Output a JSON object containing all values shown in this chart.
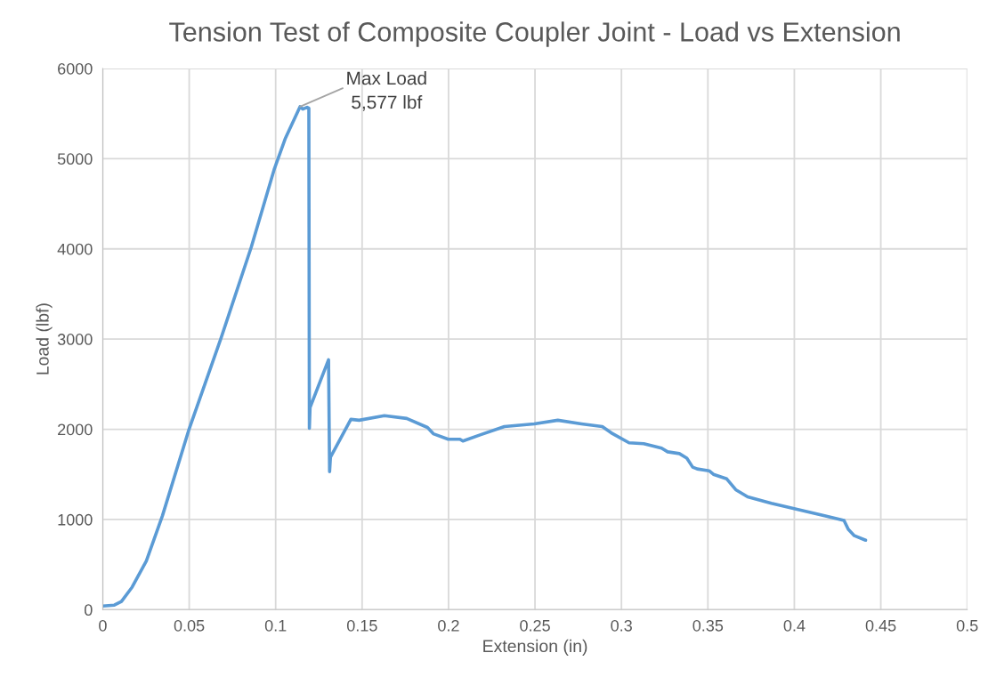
{
  "chart_data": {
    "type": "line",
    "title": "Tension Test of Composite Coupler Joint - Load vs Extension",
    "xlabel": "Extension (in)",
    "ylabel": "Load (lbf)",
    "series": [
      {
        "color": "#5b9bd5",
        "x": [
          0,
          0.0067,
          0.0108,
          0.017,
          0.0252,
          0.0345,
          0.0499,
          0.0684,
          0.0859,
          0.0993,
          0.1055,
          0.1141,
          0.1157,
          0.1182,
          0.1192,
          0.1195,
          0.1199,
          0.1306,
          0.1312,
          0.1317,
          0.1435,
          0.1483,
          0.1629,
          0.1758,
          0.1878,
          0.1912,
          0.1998,
          0.2066,
          0.2083,
          0.2186,
          0.2323,
          0.2495,
          0.2632,
          0.2769,
          0.2889,
          0.2941,
          0.3044,
          0.3129,
          0.3232,
          0.3267,
          0.3335,
          0.3378,
          0.3412,
          0.3438,
          0.3507,
          0.3532,
          0.3609,
          0.3661,
          0.373,
          0.3867,
          0.4021,
          0.4175,
          0.4287,
          0.4312,
          0.4347,
          0.4412
        ],
        "values": [
          40,
          50,
          90,
          250,
          540,
          1040,
          2000,
          3010,
          4020,
          4890,
          5220,
          5577,
          5550,
          5570,
          5560,
          2010,
          2240,
          2770,
          1530,
          1690,
          2110,
          2100,
          2150,
          2120,
          2020,
          1950,
          1890,
          1890,
          1870,
          1940,
          2030,
          2060,
          2100,
          2060,
          2030,
          1960,
          1850,
          1840,
          1790,
          1750,
          1730,
          1680,
          1580,
          1560,
          1540,
          1500,
          1450,
          1330,
          1250,
          1180,
          1110,
          1040,
          990,
          890,
          820,
          770
        ]
      }
    ],
    "annotations": [
      {
        "text": "Max Load\n5,577 lbf",
        "x": 0.1141,
        "y": 5577
      }
    ],
    "xlim": [
      0,
      0.5
    ],
    "xticks": [
      0,
      0.05,
      0.1,
      0.15,
      0.2,
      0.25,
      0.3,
      0.35,
      0.4,
      0.45,
      0.5
    ],
    "ylim": [
      0,
      6000
    ],
    "yticks": [
      0,
      1000,
      2000,
      3000,
      4000,
      5000,
      6000
    ],
    "grid": true,
    "marker": "none",
    "line_style": "solid"
  }
}
